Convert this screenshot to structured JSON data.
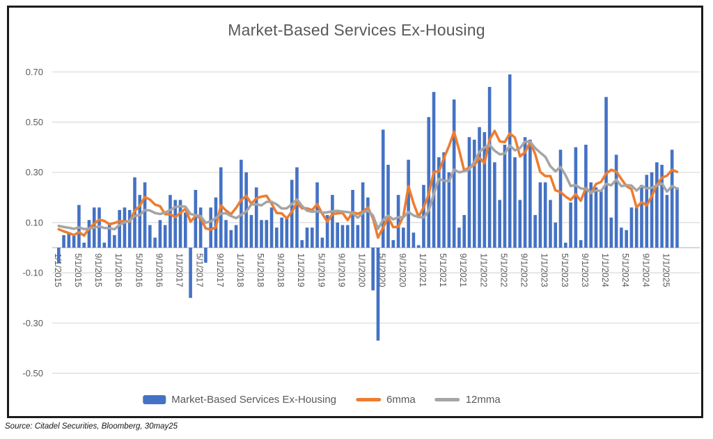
{
  "title": "Market-Based Services Ex-Housing",
  "source_note": "Source: Citadel Securities, Bloomberg, 30may25",
  "legend": {
    "bar_label": "Market-Based Services Ex-Housing",
    "line1_label": "6mma",
    "line2_label": "12mma"
  },
  "colors": {
    "bar": "#4472C4",
    "line6": "#ED7D31",
    "line12": "#A5A5A5",
    "grid": "#D9D9D9",
    "zero_axis": "#BFBFBF",
    "tick_text": "#595959"
  },
  "chart_data": {
    "type": "bar",
    "title": "Market-Based Services Ex-Housing",
    "start_month": "1/1/2015",
    "end_month": "3/1/2025",
    "ylim": [
      -0.5,
      0.7
    ],
    "grid": true,
    "legend_position": "bottom",
    "y_ticks": [
      "0.70",
      "0.50",
      "0.30",
      "0.10",
      "-0.10",
      "-0.30",
      "-0.50"
    ],
    "x_tick_every": 4,
    "x_tick_labels": [
      "1/1/2015",
      "5/1/2015",
      "9/1/2015",
      "1/1/2016",
      "5/1/2016",
      "9/1/2016",
      "1/1/2017",
      "5/1/2017",
      "9/1/2017",
      "1/1/2018",
      "5/1/2018",
      "9/1/2018",
      "1/1/2019",
      "5/1/2019",
      "9/1/2019",
      "1/1/2020",
      "5/1/2020",
      "9/1/2020",
      "1/1/2021",
      "5/1/2021",
      "9/1/2021",
      "1/1/2022",
      "5/1/2022",
      "9/1/2022",
      "1/1/2023",
      "5/1/2023",
      "9/1/2023",
      "1/1/2024",
      "5/1/2024",
      "9/1/2024",
      "1/1/2025"
    ],
    "series": [
      {
        "name": "Market-Based Services Ex-Housing",
        "kind": "bar",
        "values": [
          -0.06,
          0.05,
          0.06,
          0.05,
          0.17,
          0.02,
          0.11,
          0.16,
          0.16,
          0.02,
          0.09,
          0.05,
          0.15,
          0.16,
          0.15,
          0.28,
          0.21,
          0.26,
          0.09,
          0.04,
          0.11,
          0.09,
          0.21,
          0.19,
          0.19,
          0.14,
          -0.2,
          0.23,
          0.16,
          -0.06,
          0.16,
          0.2,
          0.32,
          0.11,
          0.07,
          0.09,
          0.35,
          0.3,
          0.13,
          0.24,
          0.11,
          0.11,
          0.16,
          0.08,
          0.12,
          0.12,
          0.27,
          0.32,
          0.03,
          0.08,
          0.08,
          0.26,
          0.04,
          0.13,
          0.21,
          0.1,
          0.09,
          0.09,
          0.23,
          0.09,
          0.26,
          0.2,
          -0.17,
          -0.37,
          0.47,
          0.33,
          0.03,
          0.21,
          0.08,
          0.35,
          0.06,
          0.01,
          0.25,
          0.52,
          0.62,
          0.36,
          0.38,
          0.3,
          0.59,
          0.08,
          0.13,
          0.44,
          0.43,
          0.48,
          0.46,
          0.64,
          0.34,
          0.19,
          0.41,
          0.69,
          0.36,
          0.19,
          0.44,
          0.43,
          0.13,
          0.26,
          0.26,
          0.19,
          0.1,
          0.39,
          0.02,
          0.18,
          0.4,
          0.03,
          0.41,
          0.26,
          0.24,
          0.23,
          0.6,
          0.12,
          0.37,
          0.08,
          0.07,
          0.16,
          0.16,
          0.25,
          0.29,
          0.3,
          0.34,
          0.33,
          0.21,
          0.39,
          0.24
        ]
      },
      {
        "name": "6mma",
        "kind": "line",
        "window": 6
      },
      {
        "name": "12mma",
        "kind": "line",
        "window": 12
      }
    ],
    "pre_series_level": 0.1
  }
}
